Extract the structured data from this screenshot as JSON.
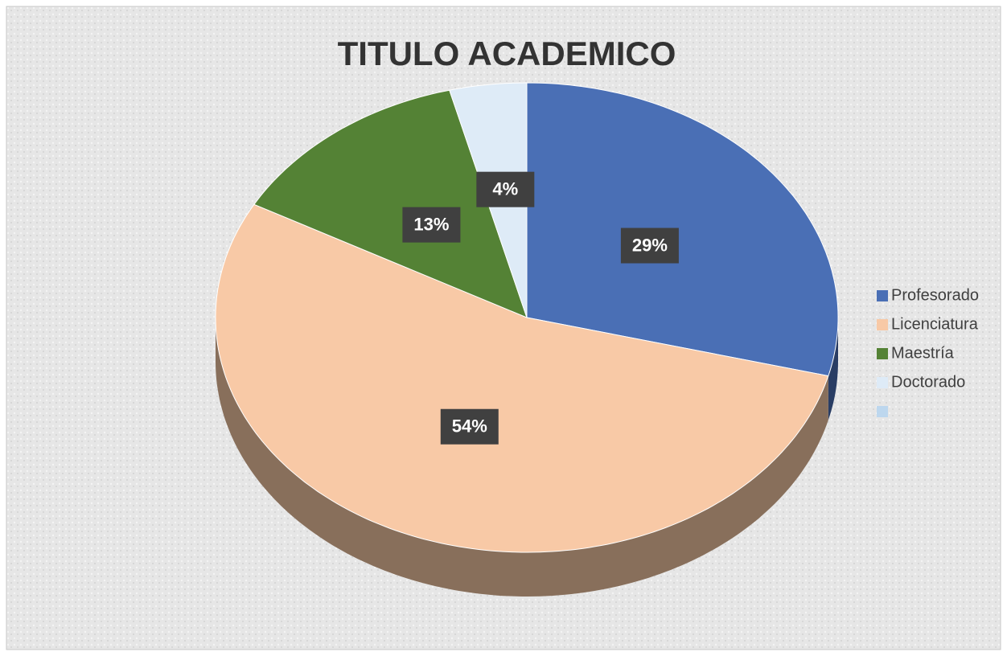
{
  "chart_data": {
    "type": "pie3d",
    "title": "TITULO ACADEMICO",
    "categories": [
      "Profesorado",
      "Licenciatura",
      "Maestría",
      "Doctorado",
      null
    ],
    "values": [
      29,
      54,
      13,
      4,
      0
    ],
    "value_labels": [
      "29%",
      "54%",
      "13%",
      "4%",
      null
    ],
    "colors": [
      "#4a6fb5",
      "#f8c9a6",
      "#548235",
      "#deebf7",
      "#bdd7ee"
    ],
    "legend": "right"
  }
}
